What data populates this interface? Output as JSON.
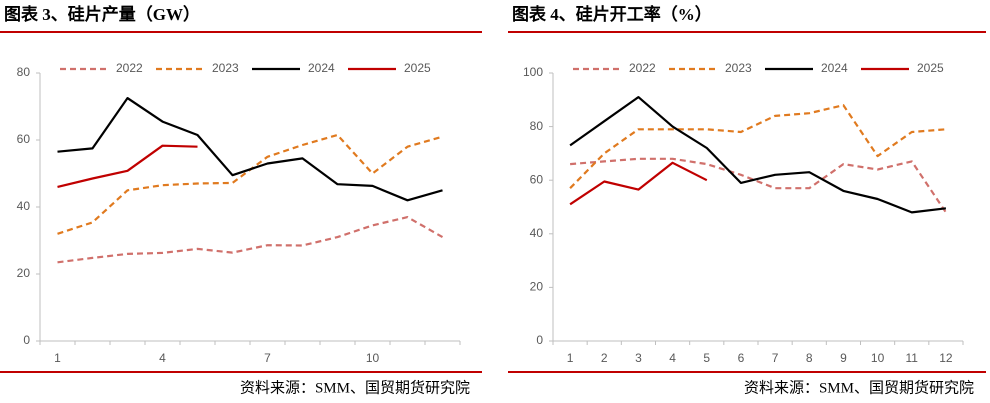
{
  "chart_data": [
    {
      "type": "line",
      "title": "图表 3、硅片产量（GW）",
      "source": "资料来源：SMM、国贸期货研究院",
      "categories": [
        "1",
        null,
        null,
        "4",
        null,
        null,
        "7",
        null,
        null,
        "10",
        null,
        null
      ],
      "ylim": [
        0,
        80
      ],
      "yticks": [
        0,
        20,
        40,
        60,
        80
      ],
      "legend": "top",
      "series": [
        {
          "name": "2022",
          "color": "#d0706b",
          "dash": true,
          "values": [
            23.5,
            24.8,
            26,
            26.3,
            27.5,
            26.4,
            28.6,
            28.5,
            31,
            34.5,
            37,
            31
          ]
        },
        {
          "name": "2023",
          "color": "#e07a1f",
          "dash": true,
          "values": [
            32,
            35.4,
            45,
            46.5,
            47,
            47.2,
            55,
            58.5,
            61.5,
            50,
            58,
            61
          ]
        },
        {
          "name": "2024",
          "color": "#000000",
          "dash": false,
          "values": [
            56.5,
            57.5,
            72.5,
            65.5,
            61.5,
            49.5,
            53,
            54.5,
            46.8,
            46.3,
            42,
            45
          ]
        },
        {
          "name": "2025",
          "color": "#c00000",
          "dash": false,
          "values": [
            46,
            48.5,
            50.8,
            58.3,
            58,
            null,
            null,
            null,
            null,
            null,
            null,
            null
          ]
        }
      ]
    },
    {
      "type": "line",
      "title": "图表 4、硅片开工率（%）",
      "source": "资料来源：SMM、国贸期货研究院",
      "categories": [
        "1",
        "2",
        "3",
        "4",
        "5",
        "6",
        "7",
        "8",
        "9",
        "10",
        "11",
        "12"
      ],
      "ylim": [
        0,
        100
      ],
      "yticks": [
        0,
        20,
        40,
        60,
        80,
        100
      ],
      "legend": "top",
      "series": [
        {
          "name": "2022",
          "color": "#d0706b",
          "dash": true,
          "values": [
            66,
            67,
            68,
            68,
            66,
            62,
            57,
            57,
            66,
            64,
            67,
            48
          ]
        },
        {
          "name": "2023",
          "color": "#e07a1f",
          "dash": true,
          "values": [
            57,
            70,
            79,
            79,
            79,
            78,
            84,
            85,
            88,
            69,
            78,
            79
          ]
        },
        {
          "name": "2024",
          "color": "#000000",
          "dash": false,
          "values": [
            73,
            82,
            91,
            80,
            72,
            59,
            62,
            63,
            56,
            53,
            48,
            49.5
          ]
        },
        {
          "name": "2025",
          "color": "#c00000",
          "dash": false,
          "values": [
            51,
            59.5,
            56.5,
            66.5,
            60,
            null,
            null,
            null,
            null,
            null,
            null,
            null
          ]
        }
      ]
    }
  ]
}
